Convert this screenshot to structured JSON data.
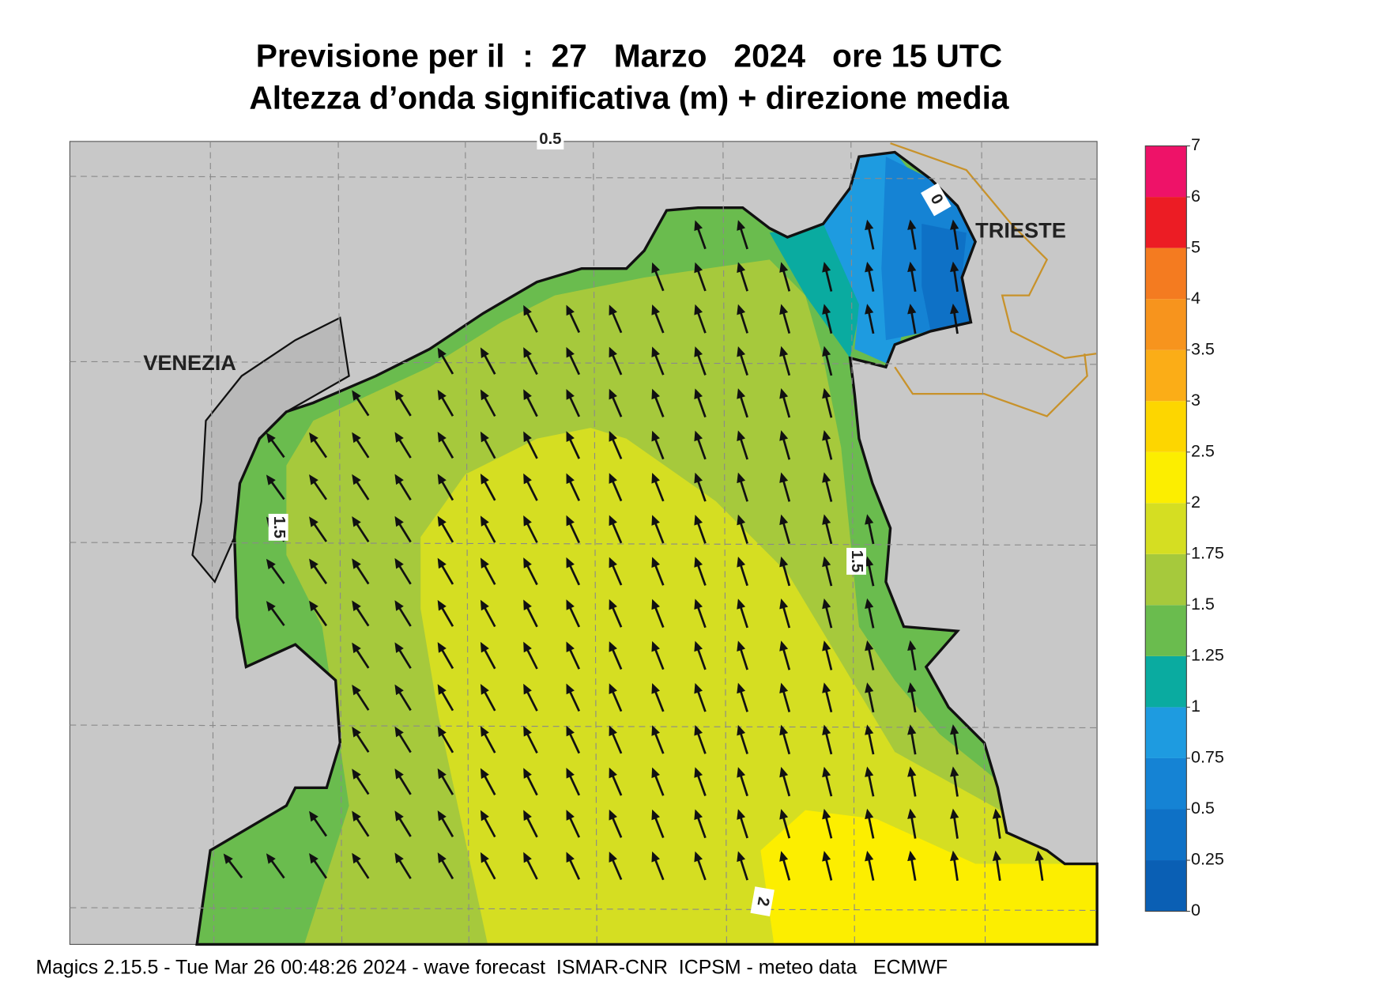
{
  "header": {
    "title": "Previsione per il  :  27   Marzo   2024   ore 15 UTC",
    "subtitle": "Altezza d’onda significativa (m) + direzione media"
  },
  "map": {
    "labels": [
      "VENEZIA",
      "TRIESTE"
    ],
    "contour_labels": [
      0.5,
      1.5,
      1.5,
      2,
      0
    ]
  },
  "colorbar": {
    "levels": [
      0,
      0.25,
      0.5,
      0.75,
      1,
      1.25,
      1.5,
      1.75,
      2,
      2.5,
      3,
      3.5,
      4,
      5,
      6,
      7
    ],
    "colors": [
      "#0a5fb4",
      "#0e71c6",
      "#1583d4",
      "#1e9be0",
      "#0aaba0",
      "#6abc4e",
      "#a6c93c",
      "#d5de22",
      "#fcee00",
      "#fdd600",
      "#fbad17",
      "#f7941d",
      "#f47b20",
      "#ec1c24",
      "#ee1268"
    ]
  },
  "footer": "Magics 2.15.5 - Tue Mar 26 00:48:26 2024 - wave forecast  ISMAR-CNR  ICPSM - meteo data   ECMWF"
}
